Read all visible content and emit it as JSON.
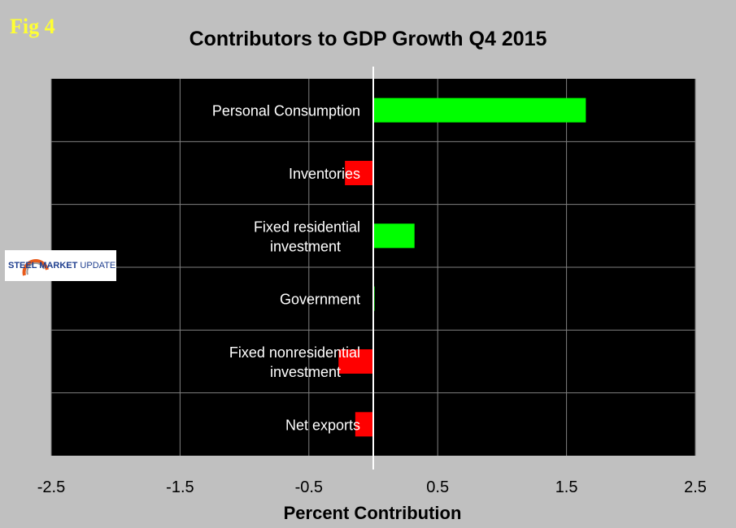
{
  "figure_label": "Fig 4",
  "logo": {
    "text_bold": "STEEL MARKET",
    "text_light": "UPDATE"
  },
  "colors": {
    "positive": "#00ff00",
    "negative": "#ff0000",
    "plot_bg": "#000000",
    "page_bg": "#c0c0c0",
    "grid": "#808080",
    "zero_line": "#ffffff"
  },
  "chart_data": {
    "type": "bar",
    "orientation": "horizontal",
    "title": "Contributors to GDP Growth Q4 2015",
    "xlabel": "Percent Contribution",
    "ylabel": "",
    "xlim": [
      -2.5,
      2.5
    ],
    "xticks": [
      -2.5,
      -1.5,
      -0.5,
      0.5,
      1.5,
      2.5
    ],
    "xtick_labels": [
      "-2.5",
      "-1.5",
      "-0.5",
      "0.5",
      "1.5",
      "2.5"
    ],
    "grid": true,
    "categories": [
      [
        "Personal Consumption"
      ],
      [
        "Inventories"
      ],
      [
        "Fixed residential",
        "investment"
      ],
      [
        "Government"
      ],
      [
        "Fixed nonresidential",
        "investment"
      ],
      [
        "Net exports"
      ]
    ],
    "values": [
      1.65,
      -0.22,
      0.32,
      0.01,
      -0.27,
      -0.14
    ]
  }
}
